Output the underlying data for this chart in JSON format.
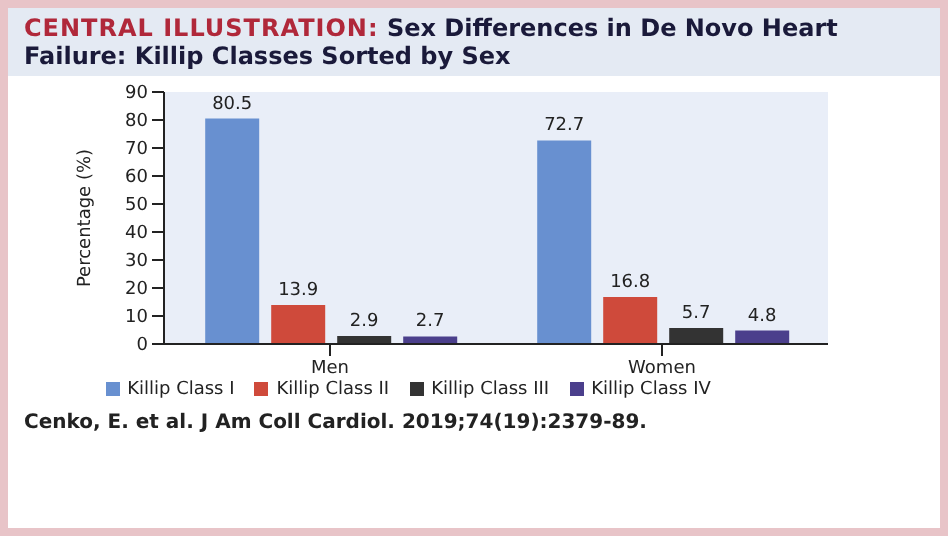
{
  "chart_data": {
    "type": "bar",
    "title": "CENTRAL ILLUSTRATION:",
    "subtitle": "Sex Differences in De Novo Heart Failure: Killip Classes Sorted by Sex",
    "ylabel": "Percentage (%)",
    "categories": [
      "Men",
      "Women"
    ],
    "series": [
      {
        "name": "Killip Class I",
        "color": "#6890d0",
        "values": [
          80.5,
          72.7
        ]
      },
      {
        "name": "Killip Class II",
        "color": "#cf4a3b",
        "values": [
          13.9,
          16.8
        ]
      },
      {
        "name": "Killip Class III",
        "color": "#333333",
        "values": [
          2.9,
          5.7
        ]
      },
      {
        "name": "Killip Class IV",
        "color": "#4b3f8c",
        "values": [
          2.7,
          4.8
        ]
      }
    ],
    "ylim": [
      0,
      90
    ],
    "yticks": [
      0,
      10,
      20,
      30,
      40,
      50,
      60,
      70,
      80,
      90
    ],
    "grid": false,
    "legend": "bottom",
    "data_labels": true,
    "annotations": [
      "Cenko, E. et al. J Am Coll Cardiol. 2019;74(19):2379-89."
    ]
  }
}
